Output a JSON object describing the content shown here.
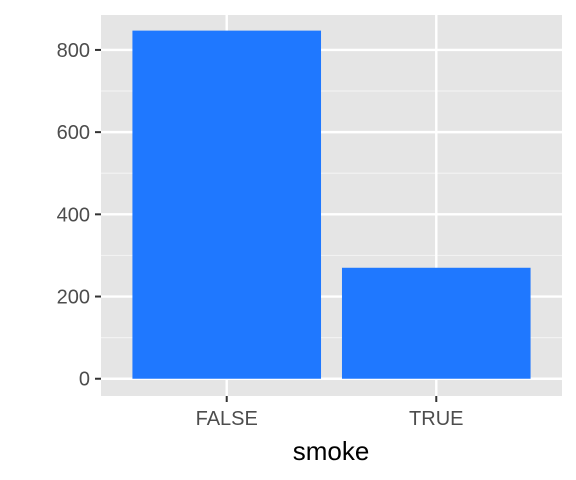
{
  "chart_data": {
    "type": "bar",
    "categories": [
      "FALSE",
      "TRUE"
    ],
    "values": [
      847,
      270
    ],
    "title": "",
    "xlabel": "smoke",
    "ylabel": "",
    "ylim": [
      -42,
      885
    ],
    "y_ticks": [
      0,
      200,
      400,
      600,
      800
    ],
    "y_tick_labels": [
      "0",
      "200",
      "400",
      "600",
      "800"
    ],
    "grid": true,
    "legend": "none"
  },
  "colors": {
    "bar_fill": "#1f78ff",
    "panel_background": "#e5e5e5",
    "grid_major": "#ffffff",
    "grid_minor": "#f2f2f2",
    "tick_text": "#4d4d4d",
    "axis_title_text": "#000000"
  }
}
